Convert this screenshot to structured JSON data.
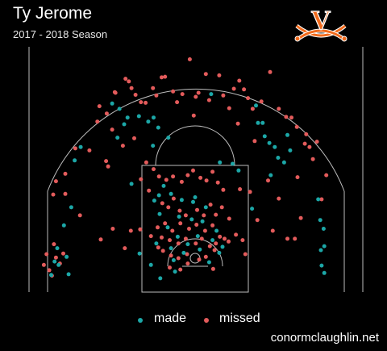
{
  "header": {
    "title": "Ty Jerome",
    "subtitle": "2017 - 2018 Season"
  },
  "logo": {
    "letter": "V",
    "colors": {
      "letter": "#f26b1d",
      "sabres": "#f26b1d",
      "outline": "#ffffff"
    }
  },
  "legend": [
    {
      "label": "made",
      "color": "#1ca7a7"
    },
    {
      "label": "missed",
      "color": "#e35b5b"
    }
  ],
  "credit": "conormclaughlin.net",
  "chart_data": {
    "type": "scatter",
    "title": "Ty Jerome",
    "subtitle": "2017 - 2018 Season",
    "xlabel": "",
    "ylabel": "",
    "xlim": [
      -25,
      25
    ],
    "ylim": [
      -5.25,
      31
    ],
    "grid": false,
    "legend_position": "bottom",
    "x_unit": "feet from basket (horizontal)",
    "y_unit": "feet from basket (toward half-court)",
    "series": [
      {
        "name": "made",
        "color": "#1ca7a7",
        "points": [
          [
            -21.5,
            -2.5
          ],
          [
            -21,
            -0.5
          ],
          [
            -20.6,
            1.5
          ],
          [
            -20.4,
            -1
          ],
          [
            -19.2,
            0.2
          ],
          [
            -19.6,
            4.9
          ],
          [
            -18.5,
            7.6
          ],
          [
            -18,
            14.6
          ],
          [
            -17.1,
            16.6
          ],
          [
            -12.4,
            23.1
          ],
          [
            -11.3,
            22.3
          ],
          [
            -10.1,
            21
          ],
          [
            -10.6,
            20
          ],
          [
            -11.6,
            18
          ],
          [
            -8.4,
            21.2
          ],
          [
            -7,
            20.4
          ],
          [
            -6.2,
            21
          ],
          [
            -5.5,
            19.5
          ],
          [
            -4,
            18
          ],
          [
            -9.5,
            11.1
          ],
          [
            -6.3,
            16.8
          ],
          [
            -6.1,
            8.6
          ],
          [
            -6.6,
            -1
          ],
          [
            -5.8,
            2.2
          ],
          [
            -5.3,
            6.6
          ],
          [
            -5.4,
            9.4
          ],
          [
            -4.7,
            10.8
          ],
          [
            -4.1,
            4.6
          ],
          [
            -3.6,
            1.5
          ],
          [
            -3.2,
            -0.3
          ],
          [
            -3,
            -2
          ],
          [
            -2.6,
            3.2
          ],
          [
            -2.4,
            6.2
          ],
          [
            -2,
            8.7
          ],
          [
            -1.7,
            0.8
          ],
          [
            -1.1,
            2.1
          ],
          [
            -0.5,
            5.8
          ],
          [
            -0.3,
            8.4
          ],
          [
            0,
            9.1
          ],
          [
            0.7,
            1.3
          ],
          [
            0.4,
            3.3
          ],
          [
            1.1,
            5.5
          ],
          [
            1.6,
            7.6
          ],
          [
            2.1,
            -0.6
          ],
          [
            2.6,
            2.7
          ],
          [
            3.2,
            4.1
          ],
          [
            3.6,
            0.8
          ],
          [
            4.1,
            1.7
          ],
          [
            3.7,
            14.3
          ],
          [
            5.6,
            14.1
          ],
          [
            6.5,
            13.1
          ],
          [
            8.5,
            7.4
          ],
          [
            9.4,
            20.2
          ],
          [
            9.1,
            22.8
          ],
          [
            10.1,
            20.2
          ],
          [
            10.4,
            18.2
          ],
          [
            11.1,
            17.2
          ],
          [
            11.9,
            16.6
          ],
          [
            12.4,
            15
          ],
          [
            13.3,
            14.3
          ],
          [
            13.8,
            18.4
          ],
          [
            14.2,
            16.1
          ],
          [
            11.3,
            12.4
          ],
          [
            18.4,
            8.8
          ],
          [
            18.7,
            5.7
          ],
          [
            19.2,
            4.4
          ],
          [
            19.3,
            1.8
          ],
          [
            18.8,
            1.2
          ],
          [
            18.9,
            -1.1
          ],
          [
            19.3,
            -2.2
          ],
          [
            2.4,
            24.5
          ],
          [
            -3.6,
            9.6
          ],
          [
            -8.3,
            0.7
          ],
          [
            -5.2,
            -3
          ],
          [
            -18.9,
            -2.4
          ]
        ]
      },
      {
        "name": "missed",
        "color": "#e35b5b",
        "points": [
          [
            -22.6,
            -1
          ],
          [
            -22.2,
            0.6
          ],
          [
            -21.8,
            -1.8
          ],
          [
            -21.4,
            -2.6
          ],
          [
            -21.1,
            2.1
          ],
          [
            -20.8,
            0.1
          ],
          [
            -20.2,
            -0.8
          ],
          [
            -19.7,
            0.7
          ],
          [
            -21.2,
            9.5
          ],
          [
            -19.4,
            9.6
          ],
          [
            -19.4,
            12.6
          ],
          [
            -17.9,
            16.4
          ],
          [
            -15.8,
            16.1
          ],
          [
            -14.6,
            20.4
          ],
          [
            -13.2,
            21.6
          ],
          [
            -11.9,
            24.7
          ],
          [
            -14.3,
            22.7
          ],
          [
            -12,
            24.8
          ],
          [
            -10.4,
            26.8
          ],
          [
            -9.9,
            26.4
          ],
          [
            -9.5,
            25.4
          ],
          [
            -8.9,
            24.4
          ],
          [
            -8.1,
            23.3
          ],
          [
            -7.4,
            23.2
          ],
          [
            -6.3,
            25.4
          ],
          [
            -5.8,
            24.3
          ],
          [
            -5,
            27
          ],
          [
            -4.5,
            27.1
          ],
          [
            -3.3,
            24.9
          ],
          [
            -2.7,
            23.3
          ],
          [
            -1.9,
            24.5
          ],
          [
            -0.8,
            29.7
          ],
          [
            0.5,
            24.7
          ],
          [
            1.6,
            27.5
          ],
          [
            2.1,
            23.6
          ],
          [
            3.6,
            27.3
          ],
          [
            4.2,
            24.3
          ],
          [
            5.8,
            25.3
          ],
          [
            6.6,
            26.5
          ],
          [
            7.3,
            25.2
          ],
          [
            7.9,
            23.9
          ],
          [
            8.6,
            22.3
          ],
          [
            9.9,
            23.4
          ],
          [
            11.2,
            27.8
          ],
          [
            12.5,
            22.3
          ],
          [
            13.6,
            21.1
          ],
          [
            14.4,
            21
          ],
          [
            15.2,
            19.6
          ],
          [
            16.4,
            17.1
          ],
          [
            16.6,
            18.5
          ],
          [
            17.1,
            16.6
          ],
          [
            17.6,
            14.8
          ],
          [
            -13.3,
            14.5
          ],
          [
            -10.8,
            16.8
          ],
          [
            -9.1,
            17.9
          ],
          [
            -8.1,
            11.8
          ],
          [
            -7.3,
            14.3
          ],
          [
            -6.2,
            13.3
          ],
          [
            -5.4,
            12.2
          ],
          [
            -4.3,
            11.7
          ],
          [
            -3.3,
            12.2
          ],
          [
            -2,
            11.4
          ],
          [
            -1.1,
            12.4
          ],
          [
            -0.3,
            13.1
          ],
          [
            0.8,
            12
          ],
          [
            1.7,
            11.6
          ],
          [
            2.6,
            12.9
          ],
          [
            3.4,
            11.3
          ],
          [
            4.2,
            10.2
          ],
          [
            -4.9,
            8.2
          ],
          [
            -4,
            7.6
          ],
          [
            -3.2,
            8.9
          ],
          [
            -2.3,
            7.1
          ],
          [
            -1.4,
            6.4
          ],
          [
            0.3,
            7.2
          ],
          [
            1.3,
            6.4
          ],
          [
            2.3,
            8
          ],
          [
            3.1,
            6.5
          ],
          [
            4,
            7.6
          ],
          [
            5.1,
            5.9
          ],
          [
            -5.6,
            4.6
          ],
          [
            -4.5,
            5.2
          ],
          [
            -3.4,
            4.1
          ],
          [
            -2.2,
            5.2
          ],
          [
            -0.9,
            4.4
          ],
          [
            0.2,
            5
          ],
          [
            1.5,
            4.1
          ],
          [
            2.6,
            4.9
          ],
          [
            3.7,
            3.2
          ],
          [
            5,
            2.5
          ],
          [
            -6.6,
            3.3
          ],
          [
            -5,
            3.1
          ],
          [
            -3.8,
            2.7
          ],
          [
            -2.5,
            2.2
          ],
          [
            -1.4,
            2.9
          ],
          [
            0.1,
            2.2
          ],
          [
            1,
            2.9
          ],
          [
            2.2,
            1.8
          ],
          [
            3.1,
            2.2
          ],
          [
            4.4,
            2.9
          ],
          [
            -4.8,
            1.1
          ],
          [
            -3.6,
            0.4
          ],
          [
            -2.5,
            0
          ],
          [
            -1.2,
            0.6
          ],
          [
            0.6,
            -0.2
          ],
          [
            1.6,
            0.2
          ],
          [
            2.9,
            1.2
          ],
          [
            -3.8,
            -1.4
          ],
          [
            -2.2,
            -1.7
          ],
          [
            -1.1,
            -0.8
          ],
          [
            2.7,
            -1.6
          ],
          [
            -10.5,
            1.5
          ],
          [
            -14.1,
            2.8
          ],
          [
            -9.6,
            4.1
          ],
          [
            -12.3,
            4.4
          ],
          [
            -8.2,
            4.3
          ],
          [
            9.3,
            5.7
          ],
          [
            7.5,
            0.6
          ],
          [
            11.6,
            4.1
          ],
          [
            13.8,
            2.9
          ],
          [
            14.9,
            2.9
          ],
          [
            15.8,
            6
          ],
          [
            10.9,
            11.6
          ],
          [
            15.3,
            12.1
          ],
          [
            12.5,
            8.9
          ],
          [
            6.4,
            20.1
          ],
          [
            5.1,
            22.4
          ],
          [
            8.9,
            17.5
          ],
          [
            -5.5,
            1.6
          ],
          [
            -6.9,
            10.1
          ],
          [
            6.1,
            3.5
          ],
          [
            8.2,
            9.9
          ],
          [
            18.2,
            17.4
          ],
          [
            18.9,
            8.8
          ],
          [
            -17.2,
            6.4
          ],
          [
            -12.4,
            19.2
          ],
          [
            0.1,
            24.1
          ],
          [
            -0.2,
            21.3
          ],
          [
            19.6,
            12.4
          ],
          [
            -20.8,
            11.5
          ],
          [
            -13,
            13.7
          ],
          [
            6.7,
            10.3
          ],
          [
            7.1,
            2.7
          ]
        ]
      }
    ]
  }
}
